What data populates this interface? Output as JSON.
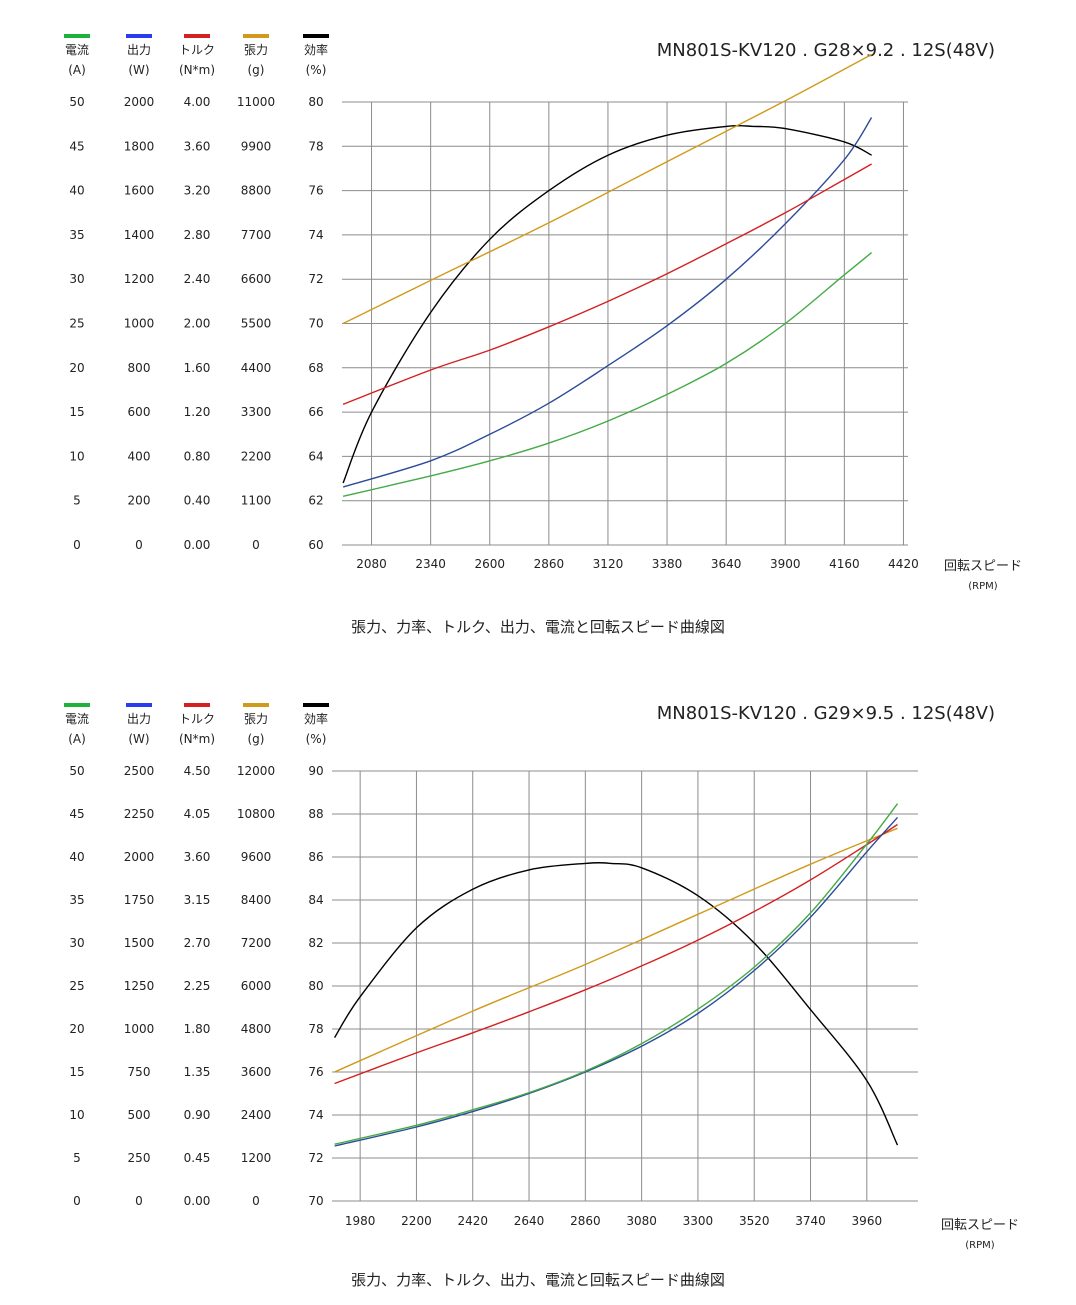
{
  "chart_data": [
    {
      "type": "line",
      "title": "MN801S-KV120 . G28×9.2 . 12S(48V)",
      "caption": "張力、力率、トルク、出力、電流と回転スピード曲線図",
      "xlabel": "回転スピード",
      "xunit": "(RPM)",
      "xlim": [
        1950,
        4440
      ],
      "xticks": [
        2080,
        2340,
        2600,
        2860,
        3120,
        3380,
        3640,
        3900,
        4160,
        4420
      ],
      "grid": true,
      "axes": [
        {
          "key": "current",
          "name": "電流",
          "unit": "(A)",
          "color": "#1db33b",
          "min": 0,
          "max": 50,
          "ticks": [
            "0",
            "5",
            "10",
            "15",
            "20",
            "25",
            "30",
            "35",
            "40",
            "45",
            "50"
          ]
        },
        {
          "key": "power",
          "name": "出力",
          "unit": "(W)",
          "color": "#2b3bf0",
          "min": 0,
          "max": 2000,
          "ticks": [
            "0",
            "200",
            "400",
            "600",
            "800",
            "1000",
            "1200",
            "1400",
            "1600",
            "1800",
            "2000"
          ]
        },
        {
          "key": "torque",
          "name": "トルク",
          "unit": "(N*m)",
          "color": "#d42020",
          "min": 0,
          "max": 4.0,
          "ticks": [
            "0.00",
            "0.40",
            "0.80",
            "1.20",
            "1.60",
            "2.00",
            "2.40",
            "2.80",
            "3.20",
            "3.60",
            "4.00"
          ]
        },
        {
          "key": "thrust",
          "name": "張力",
          "unit": "(g)",
          "color": "#d19a1a",
          "min": 0,
          "max": 11000,
          "ticks": [
            "0",
            "1100",
            "2200",
            "3300",
            "4400",
            "5500",
            "6600",
            "7700",
            "8800",
            "9900",
            "11000"
          ]
        },
        {
          "key": "efficiency",
          "name": "効率",
          "unit": "(%)",
          "color": "#000000",
          "min": 60,
          "max": 80,
          "ticks": [
            "60",
            "62",
            "64",
            "66",
            "68",
            "70",
            "72",
            "74",
            "76",
            "78",
            "80"
          ]
        }
      ],
      "series": [
        {
          "axis": "efficiency",
          "color": "#000000",
          "x": [
            1955,
            2080,
            2340,
            2600,
            2860,
            3120,
            3380,
            3640,
            3760,
            3900,
            4160,
            4280
          ],
          "y": [
            62.8,
            66.0,
            70.5,
            73.8,
            76.0,
            77.6,
            78.5,
            78.9,
            78.9,
            78.8,
            78.2,
            77.6
          ]
        },
        {
          "axis": "thrust",
          "color": "#d19a1a",
          "x": [
            1955,
            2340,
            2860,
            3380,
            3900,
            4280
          ],
          "y": [
            5500,
            6570,
            8000,
            9520,
            11030,
            12180
          ]
        },
        {
          "axis": "power",
          "color": "#2b4b9a",
          "x": [
            1955,
            2340,
            2600,
            2860,
            3120,
            3380,
            3640,
            3900,
            4160,
            4280
          ],
          "y": [
            262,
            380,
            500,
            640,
            810,
            990,
            1200,
            1450,
            1740,
            1930
          ]
        },
        {
          "axis": "torque",
          "color": "#d42020",
          "x": [
            1955,
            2340,
            2600,
            2860,
            3120,
            3380,
            3640,
            3900,
            4160,
            4280
          ],
          "y": [
            1.27,
            1.58,
            1.76,
            1.97,
            2.2,
            2.45,
            2.72,
            3.0,
            3.3,
            3.44
          ]
        },
        {
          "axis": "current",
          "color": "#44aa44",
          "x": [
            1955,
            2340,
            2600,
            2860,
            3120,
            3380,
            3640,
            3900,
            4160,
            4280
          ],
          "y": [
            5.5,
            7.8,
            9.5,
            11.5,
            14.0,
            17.0,
            20.5,
            25.0,
            30.5,
            33.0
          ]
        }
      ]
    },
    {
      "type": "line",
      "title": "MN801S-KV120 . G29×9.5 . 12S(48V)",
      "caption": "張力、力率、トルク、出力、電流と回転スピード曲線図",
      "xlabel": "回転スピード",
      "xunit": "(RPM)",
      "xlim": [
        1870,
        4160
      ],
      "xticks": [
        1980,
        2200,
        2420,
        2640,
        2860,
        3080,
        3300,
        3520,
        3740,
        3960
      ],
      "grid": true,
      "axes": [
        {
          "key": "current",
          "name": "電流",
          "unit": "(A)",
          "color": "#1db33b",
          "min": 0,
          "max": 50,
          "ticks": [
            "0",
            "5",
            "10",
            "15",
            "20",
            "25",
            "30",
            "35",
            "40",
            "45",
            "50"
          ]
        },
        {
          "key": "power",
          "name": "出力",
          "unit": "(W)",
          "color": "#2b3bf0",
          "min": 0,
          "max": 2500,
          "ticks": [
            "0",
            "250",
            "500",
            "750",
            "1000",
            "1250",
            "1500",
            "1750",
            "2000",
            "2250",
            "2500"
          ]
        },
        {
          "key": "torque",
          "name": "トルク",
          "unit": "(N*m)",
          "color": "#d42020",
          "min": 0,
          "max": 4.5,
          "ticks": [
            "0.00",
            "0.45",
            "0.90",
            "1.35",
            "1.80",
            "2.25",
            "2.70",
            "3.15",
            "3.60",
            "4.05",
            "4.50"
          ]
        },
        {
          "key": "thrust",
          "name": "張力",
          "unit": "(g)",
          "color": "#d19a1a",
          "min": 0,
          "max": 12000,
          "ticks": [
            "0",
            "1200",
            "2400",
            "3600",
            "4800",
            "6000",
            "7200",
            "8400",
            "9600",
            "10800",
            "12000"
          ]
        },
        {
          "key": "efficiency",
          "name": "効率",
          "unit": "(%)",
          "color": "#000000",
          "min": 70,
          "max": 90,
          "ticks": [
            "70",
            "72",
            "74",
            "76",
            "78",
            "80",
            "82",
            "84",
            "86",
            "88",
            "90"
          ]
        }
      ],
      "series": [
        {
          "axis": "efficiency",
          "color": "#000000",
          "x": [
            1880,
            1980,
            2200,
            2420,
            2640,
            2860,
            2960,
            3080,
            3300,
            3520,
            3740,
            3960,
            4080
          ],
          "y": [
            77.6,
            79.5,
            82.7,
            84.5,
            85.4,
            85.7,
            85.7,
            85.5,
            84.2,
            82.0,
            78.9,
            75.6,
            72.6
          ]
        },
        {
          "axis": "thrust",
          "color": "#d19a1a",
          "x": [
            1880,
            2420,
            2860,
            3300,
            3740,
            4080
          ],
          "y": [
            3600,
            5300,
            6600,
            8000,
            9400,
            10400
          ]
        },
        {
          "axis": "torque",
          "color": "#d42020",
          "x": [
            1880,
            2200,
            2420,
            2640,
            2860,
            3080,
            3300,
            3520,
            3740,
            3960,
            4080
          ],
          "y": [
            1.23,
            1.55,
            1.76,
            1.98,
            2.21,
            2.46,
            2.73,
            3.03,
            3.36,
            3.73,
            3.94
          ]
        },
        {
          "axis": "power",
          "color": "#2b4b9a",
          "x": [
            1880,
            2200,
            2420,
            2640,
            2860,
            3080,
            3300,
            3520,
            3740,
            3960,
            4080
          ],
          "y": [
            320,
            430,
            520,
            625,
            750,
            900,
            1090,
            1340,
            1650,
            2030,
            2230
          ]
        },
        {
          "axis": "current",
          "color": "#44aa44",
          "x": [
            1880,
            2200,
            2420,
            2640,
            2860,
            3080,
            3300,
            3520,
            3740,
            3960,
            4080
          ],
          "y": [
            6.6,
            8.8,
            10.6,
            12.6,
            15.1,
            18.3,
            22.3,
            27.2,
            33.5,
            41.5,
            46.2
          ]
        }
      ]
    }
  ]
}
